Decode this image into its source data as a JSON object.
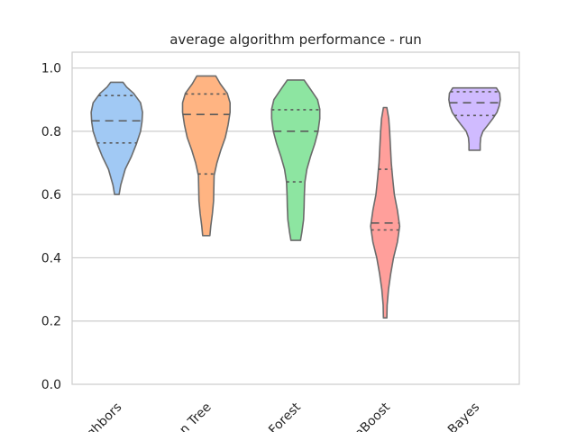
{
  "chart_data": {
    "type": "violin",
    "title": "average algorithm performance - run",
    "xlabel": "",
    "ylabel": "",
    "ylim": [
      0.0,
      1.05
    ],
    "yticks": [
      0.0,
      0.2,
      0.4,
      0.6,
      0.8,
      1.0
    ],
    "ytick_labels": [
      "0.0",
      "0.2",
      "0.4",
      "0.6",
      "0.8",
      "1.0"
    ],
    "grid": "horizontal",
    "categories": [
      "ighbors",
      "n Tree",
      "Forest",
      "aBoost",
      "Bayes"
    ],
    "colors": [
      "#a1c9f4",
      "#ffb482",
      "#8de5a1",
      "#ff9f9b",
      "#d0bbff"
    ],
    "violins": [
      {
        "label": "ighbors",
        "min": 0.6,
        "max": 0.955,
        "q1": 0.763,
        "median": 0.833,
        "q3": 0.913,
        "profile": [
          [
            0.6,
            0.08
          ],
          [
            0.63,
            0.14
          ],
          [
            0.68,
            0.3
          ],
          [
            0.72,
            0.52
          ],
          [
            0.76,
            0.7
          ],
          [
            0.8,
            0.85
          ],
          [
            0.83,
            0.9
          ],
          [
            0.86,
            0.92
          ],
          [
            0.89,
            0.85
          ],
          [
            0.92,
            0.6
          ],
          [
            0.94,
            0.35
          ],
          [
            0.955,
            0.22
          ]
        ]
      },
      {
        "label": "n Tree",
        "min": 0.47,
        "max": 0.975,
        "q1": 0.665,
        "median": 0.853,
        "q3": 0.918,
        "profile": [
          [
            0.47,
            0.13
          ],
          [
            0.5,
            0.16
          ],
          [
            0.54,
            0.22
          ],
          [
            0.58,
            0.26
          ],
          [
            0.62,
            0.27
          ],
          [
            0.66,
            0.28
          ],
          [
            0.7,
            0.38
          ],
          [
            0.74,
            0.52
          ],
          [
            0.78,
            0.68
          ],
          [
            0.82,
            0.78
          ],
          [
            0.86,
            0.85
          ],
          [
            0.89,
            0.85
          ],
          [
            0.92,
            0.75
          ],
          [
            0.95,
            0.5
          ],
          [
            0.975,
            0.34
          ]
        ]
      },
      {
        "label": "Forest",
        "min": 0.455,
        "max": 0.962,
        "q1": 0.64,
        "median": 0.8,
        "q3": 0.868,
        "profile": [
          [
            0.455,
            0.17
          ],
          [
            0.48,
            0.22
          ],
          [
            0.52,
            0.28
          ],
          [
            0.56,
            0.3
          ],
          [
            0.6,
            0.31
          ],
          [
            0.64,
            0.33
          ],
          [
            0.68,
            0.4
          ],
          [
            0.72,
            0.53
          ],
          [
            0.76,
            0.68
          ],
          [
            0.8,
            0.8
          ],
          [
            0.84,
            0.86
          ],
          [
            0.87,
            0.86
          ],
          [
            0.9,
            0.78
          ],
          [
            0.93,
            0.55
          ],
          [
            0.962,
            0.3
          ]
        ]
      },
      {
        "label": "aBoost",
        "min": 0.21,
        "max": 0.875,
        "q1": 0.488,
        "median": 0.51,
        "q3": 0.68,
        "profile": [
          [
            0.21,
            0.06
          ],
          [
            0.25,
            0.07
          ],
          [
            0.3,
            0.12
          ],
          [
            0.35,
            0.2
          ],
          [
            0.4,
            0.3
          ],
          [
            0.45,
            0.44
          ],
          [
            0.5,
            0.52
          ],
          [
            0.55,
            0.44
          ],
          [
            0.6,
            0.33
          ],
          [
            0.65,
            0.27
          ],
          [
            0.7,
            0.22
          ],
          [
            0.75,
            0.19
          ],
          [
            0.8,
            0.16
          ],
          [
            0.84,
            0.13
          ],
          [
            0.875,
            0.06
          ]
        ]
      },
      {
        "label": "Bayes",
        "min": 0.74,
        "max": 0.937,
        "q1": 0.85,
        "median": 0.89,
        "q3": 0.925,
        "profile": [
          [
            0.74,
            0.2
          ],
          [
            0.76,
            0.2
          ],
          [
            0.78,
            0.22
          ],
          [
            0.8,
            0.3
          ],
          [
            0.82,
            0.48
          ],
          [
            0.84,
            0.65
          ],
          [
            0.86,
            0.8
          ],
          [
            0.88,
            0.88
          ],
          [
            0.9,
            0.92
          ],
          [
            0.92,
            0.9
          ],
          [
            0.937,
            0.78
          ]
        ]
      }
    ]
  }
}
